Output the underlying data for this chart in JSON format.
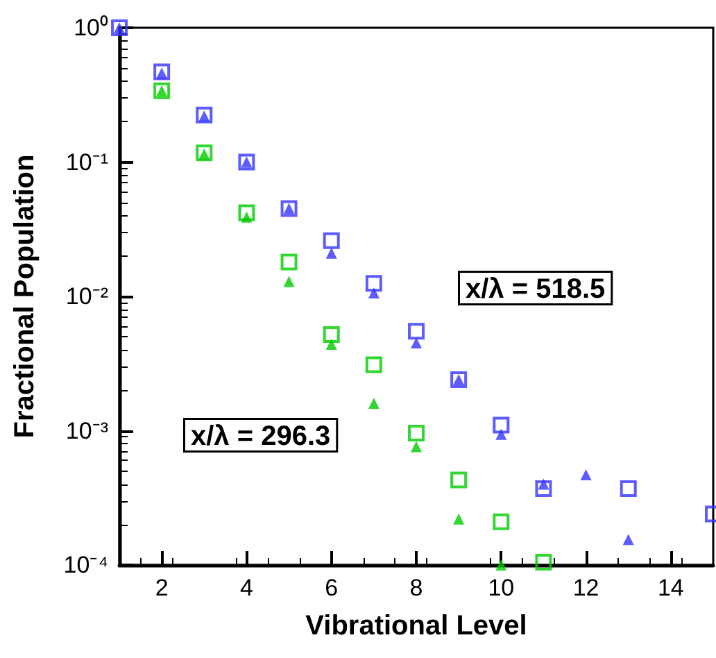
{
  "chart_data": {
    "type": "scatter",
    "xlabel": "Vibrational Level",
    "ylabel": "Fractional Population",
    "x": [
      1,
      2,
      3,
      4,
      5,
      6,
      7,
      8,
      9,
      10,
      11,
      12,
      13,
      14,
      15
    ],
    "series": [
      {
        "color": "#3333ff",
        "marker": "square",
        "values": [
          1,
          0.47,
          0.224,
          0.1,
          0.045,
          0.026,
          0.0125,
          0.0055,
          0.0024,
          0.0011,
          0.00037,
          null,
          0.00037,
          null,
          0.00024
        ]
      },
      {
        "color": "#3333ff",
        "marker": "triangle",
        "values": [
          1,
          0.46,
          0.22,
          0.1,
          0.045,
          0.021,
          0.0106,
          0.0045,
          0.0024,
          0.00094,
          0.0004,
          0.00047,
          0.000155,
          null,
          null
        ]
      },
      {
        "color": "#00cc00",
        "marker": "square",
        "values": [
          null,
          0.34,
          0.117,
          0.042,
          0.018,
          0.0052,
          0.0031,
          0.00096,
          0.00043,
          0.00021,
          0.000105,
          null,
          null,
          null,
          null
        ]
      },
      {
        "color": "#00cc00",
        "marker": "triangle",
        "values": [
          null,
          0.34,
          0.115,
          0.039,
          0.0129,
          0.0044,
          0.0016,
          0.00076,
          0.00022,
          0.0001,
          null,
          null,
          null,
          null,
          null
        ]
      }
    ],
    "annotations": [
      "x/λ = 518.5",
      "x/λ = 296.3"
    ],
    "log": "y",
    "xlim": [
      1,
      15
    ],
    "xticks": [
      2,
      4,
      6,
      8,
      10,
      12,
      14
    ],
    "ylim": [
      0.0001,
      1
    ],
    "yticks": [
      {
        "value": 0.0001,
        "label": "10⁻⁴"
      },
      {
        "value": 0.001,
        "label": "10⁻³"
      },
      {
        "value": 0.01,
        "label": "10⁻²"
      },
      {
        "value": 0.1,
        "label": "10⁻¹"
      },
      {
        "value": 1,
        "label": "10⁰"
      }
    ],
    "grid": false
  }
}
